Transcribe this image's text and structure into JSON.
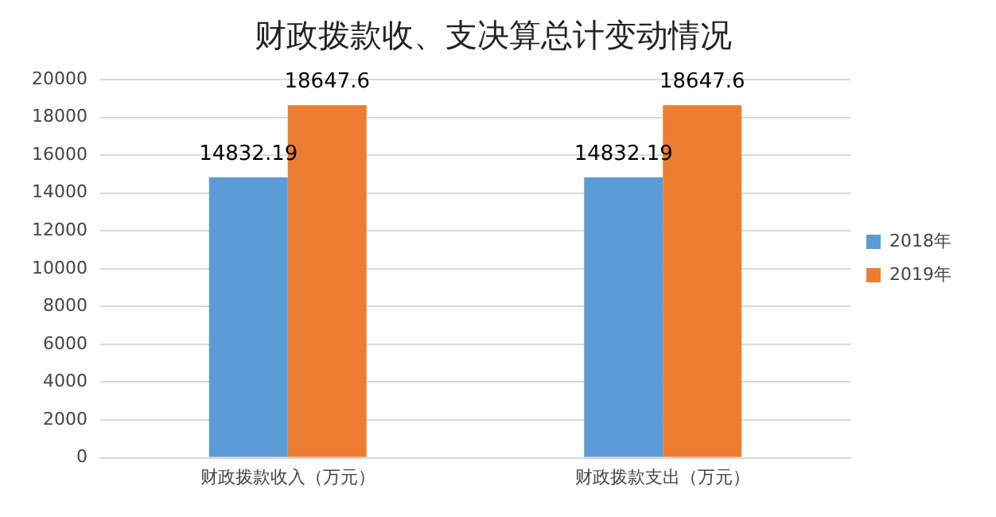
{
  "chart_data": {
    "type": "bar",
    "title": "财政拨款收、支决算总计变动情况",
    "categories": [
      "财政拨款收入（万元）",
      "财政拨款支出（万元）"
    ],
    "series": [
      {
        "name": "2018年",
        "color": "#5b9bd5",
        "values": [
          14832.19,
          14832.19
        ]
      },
      {
        "name": "2019年",
        "color": "#ed7d31",
        "values": [
          18647.6,
          18647.6
        ]
      }
    ],
    "ylim": [
      0,
      20000
    ],
    "yticks": [
      0,
      2000,
      4000,
      6000,
      8000,
      10000,
      12000,
      14000,
      16000,
      18000,
      20000
    ],
    "grid": "y",
    "legend": "right",
    "data_labels": true
  }
}
